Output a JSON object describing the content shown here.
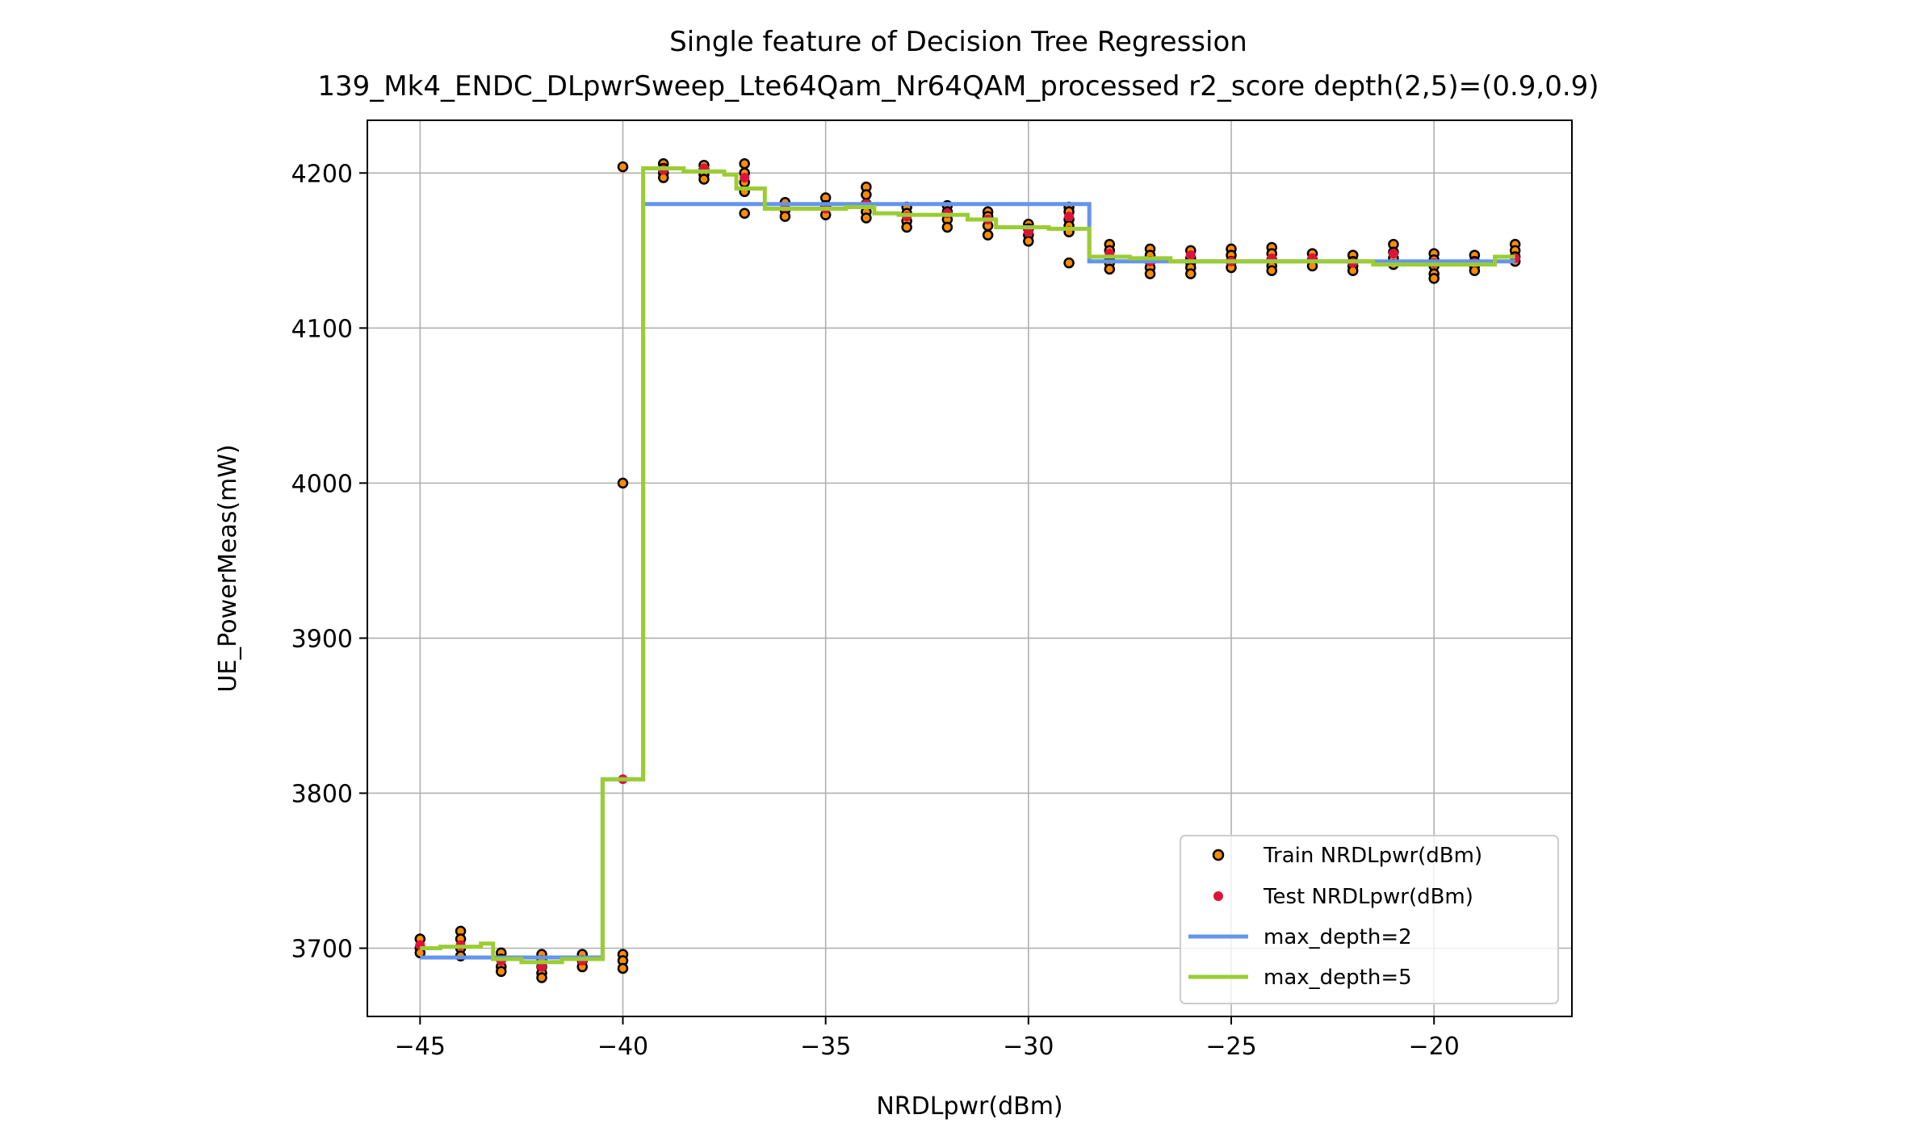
{
  "colors": {
    "train_fill": "#ff8c00",
    "train_edge": "#000000",
    "test_fill": "#dc143c",
    "depth2_line": "#6495ed",
    "depth5_line": "#9acd32",
    "grid": "#b0b0b0"
  },
  "chart_data": {
    "type": "scatter",
    "title": "Single feature of Decision Tree Regression",
    "subtitle": "139_Mk4_ENDC_DLpwrSweep_Lte64Qam_Nr64QAM_processed r2_score depth(2,5)=(0.9,0.9)",
    "xlabel": "NRDLpwr(dBm)",
    "ylabel": "UE_PowerMeas(mW)",
    "xlim": [
      -46.3,
      -16.6
    ],
    "ylim": [
      3656,
      4234
    ],
    "xticks": [
      -45,
      -40,
      -35,
      -30,
      -25,
      -20
    ],
    "xtick_labels": [
      "−45",
      "−40",
      "−35",
      "−30",
      "−25",
      "−20"
    ],
    "yticks": [
      3700,
      3800,
      3900,
      4000,
      4100,
      4200
    ],
    "ytick_labels": [
      "3700",
      "3800",
      "3900",
      "4000",
      "4100",
      "4200"
    ],
    "grid": true,
    "legend_position": "lower-right",
    "legend": [
      "Train NRDLpwr(dBm)",
      "Test NRDLpwr(dBm)",
      "max_depth=2",
      "max_depth=5"
    ],
    "series": [
      {
        "name": "Train NRDLpwr(dBm)",
        "kind": "scatter",
        "points": [
          [
            -45,
            3706
          ],
          [
            -45,
            3700
          ],
          [
            -45,
            3697
          ],
          [
            -44,
            3711
          ],
          [
            -44,
            3706
          ],
          [
            -44,
            3700
          ],
          [
            -44,
            3695
          ],
          [
            -43,
            3697
          ],
          [
            -43,
            3693
          ],
          [
            -43,
            3688
          ],
          [
            -43,
            3685
          ],
          [
            -42,
            3696
          ],
          [
            -42,
            3692
          ],
          [
            -42,
            3688
          ],
          [
            -42,
            3684
          ],
          [
            -42,
            3681
          ],
          [
            -41,
            3696
          ],
          [
            -41,
            3692
          ],
          [
            -41,
            3688
          ],
          [
            -40,
            4204
          ],
          [
            -40,
            4000
          ],
          [
            -40,
            3696
          ],
          [
            -40,
            3692
          ],
          [
            -40,
            3687
          ],
          [
            -39,
            4206
          ],
          [
            -39,
            4203
          ],
          [
            -39,
            4200
          ],
          [
            -39,
            4197
          ],
          [
            -38,
            4205
          ],
          [
            -38,
            4202
          ],
          [
            -38,
            4199
          ],
          [
            -38,
            4196
          ],
          [
            -37,
            4206
          ],
          [
            -37,
            4200
          ],
          [
            -37,
            4194
          ],
          [
            -37,
            4188
          ],
          [
            -37,
            4174
          ],
          [
            -36,
            4181
          ],
          [
            -36,
            4176
          ],
          [
            -36,
            4172
          ],
          [
            -35,
            4184
          ],
          [
            -35,
            4179
          ],
          [
            -35,
            4173
          ],
          [
            -34,
            4191
          ],
          [
            -34,
            4186
          ],
          [
            -34,
            4180
          ],
          [
            -34,
            4175
          ],
          [
            -34,
            4171
          ],
          [
            -33,
            4178
          ],
          [
            -33,
            4174
          ],
          [
            -33,
            4169
          ],
          [
            -33,
            4165
          ],
          [
            -32,
            4179
          ],
          [
            -32,
            4175
          ],
          [
            -32,
            4170
          ],
          [
            -32,
            4165
          ],
          [
            -31,
            4175
          ],
          [
            -31,
            4172
          ],
          [
            -31,
            4166
          ],
          [
            -31,
            4160
          ],
          [
            -30,
            4167
          ],
          [
            -30,
            4164
          ],
          [
            -30,
            4160
          ],
          [
            -30,
            4156
          ],
          [
            -29,
            4178
          ],
          [
            -29,
            4175
          ],
          [
            -29,
            4170
          ],
          [
            -29,
            4166
          ],
          [
            -29,
            4162
          ],
          [
            -29,
            4142
          ],
          [
            -28,
            4154
          ],
          [
            -28,
            4150
          ],
          [
            -28,
            4145
          ],
          [
            -28,
            4142
          ],
          [
            -28,
            4138
          ],
          [
            -27,
            4151
          ],
          [
            -27,
            4147
          ],
          [
            -27,
            4143
          ],
          [
            -27,
            4139
          ],
          [
            -27,
            4135
          ],
          [
            -26,
            4150
          ],
          [
            -26,
            4145
          ],
          [
            -26,
            4142
          ],
          [
            -26,
            4139
          ],
          [
            -26,
            4135
          ],
          [
            -25,
            4151
          ],
          [
            -25,
            4147
          ],
          [
            -25,
            4143
          ],
          [
            -25,
            4139
          ],
          [
            -24,
            4152
          ],
          [
            -24,
            4148
          ],
          [
            -24,
            4144
          ],
          [
            -24,
            4140
          ],
          [
            -24,
            4137
          ],
          [
            -23,
            4148
          ],
          [
            -23,
            4144
          ],
          [
            -23,
            4140
          ],
          [
            -22,
            4147
          ],
          [
            -22,
            4143
          ],
          [
            -22,
            4140
          ],
          [
            -22,
            4137
          ],
          [
            -21,
            4154
          ],
          [
            -21,
            4149
          ],
          [
            -21,
            4145
          ],
          [
            -21,
            4141
          ],
          [
            -20,
            4148
          ],
          [
            -20,
            4144
          ],
          [
            -20,
            4140
          ],
          [
            -20,
            4135
          ],
          [
            -20,
            4132
          ],
          [
            -19,
            4147
          ],
          [
            -19,
            4143
          ],
          [
            -19,
            4140
          ],
          [
            -19,
            4137
          ],
          [
            -18,
            4154
          ],
          [
            -18,
            4150
          ],
          [
            -18,
            4146
          ],
          [
            -18,
            4143
          ]
        ]
      },
      {
        "name": "Test NRDLpwr(dBm)",
        "kind": "scatter",
        "points": [
          [
            -45,
            3702
          ],
          [
            -44,
            3702
          ],
          [
            -43,
            3692
          ],
          [
            -42,
            3688
          ],
          [
            -41,
            3692
          ],
          [
            -40,
            3809
          ],
          [
            -39,
            4202
          ],
          [
            -38,
            4203
          ],
          [
            -37,
            4197
          ],
          [
            -36,
            4178
          ],
          [
            -35,
            4177
          ],
          [
            -34,
            4180
          ],
          [
            -33,
            4172
          ],
          [
            -32,
            4174
          ],
          [
            -31,
            4170
          ],
          [
            -30,
            4162
          ],
          [
            -29,
            4172
          ],
          [
            -28,
            4148
          ],
          [
            -27,
            4143
          ],
          [
            -26,
            4147
          ],
          [
            -25,
            4143
          ],
          [
            -24,
            4145
          ],
          [
            -23,
            4145
          ],
          [
            -22,
            4142
          ],
          [
            -21,
            4148
          ],
          [
            -20,
            4142
          ],
          [
            -19,
            4142
          ],
          [
            -18,
            4145
          ]
        ]
      },
      {
        "name": "max_depth=2",
        "kind": "line",
        "points": [
          [
            -45,
            3694
          ],
          [
            -40.5,
            3694
          ],
          [
            -40.5,
            3809
          ],
          [
            -39.5,
            3809
          ],
          [
            -39.5,
            4180
          ],
          [
            -28.5,
            4180
          ],
          [
            -28.5,
            4143
          ],
          [
            -18,
            4143
          ]
        ]
      },
      {
        "name": "max_depth=5",
        "kind": "line",
        "points": [
          [
            -45,
            3700
          ],
          [
            -44.5,
            3700
          ],
          [
            -44.5,
            3701
          ],
          [
            -43.5,
            3701
          ],
          [
            -43.5,
            3703
          ],
          [
            -43.2,
            3703
          ],
          [
            -43.2,
            3693
          ],
          [
            -42.5,
            3693
          ],
          [
            -42.5,
            3691
          ],
          [
            -41.5,
            3691
          ],
          [
            -41.5,
            3693
          ],
          [
            -40.5,
            3693
          ],
          [
            -40.5,
            3809
          ],
          [
            -39.5,
            3809
          ],
          [
            -39.5,
            4203
          ],
          [
            -38.5,
            4203
          ],
          [
            -38.5,
            4201
          ],
          [
            -37.5,
            4201
          ],
          [
            -37.5,
            4199
          ],
          [
            -37.2,
            4199
          ],
          [
            -37.2,
            4190
          ],
          [
            -36.5,
            4190
          ],
          [
            -36.5,
            4177
          ],
          [
            -34.5,
            4177
          ],
          [
            -34.5,
            4178
          ],
          [
            -33.8,
            4178
          ],
          [
            -33.8,
            4174
          ],
          [
            -33.2,
            4174
          ],
          [
            -33.2,
            4173
          ],
          [
            -31.5,
            4173
          ],
          [
            -31.5,
            4170
          ],
          [
            -30.8,
            4170
          ],
          [
            -30.8,
            4165
          ],
          [
            -29.5,
            4165
          ],
          [
            -29.5,
            4164
          ],
          [
            -28.5,
            4164
          ],
          [
            -28.5,
            4146
          ],
          [
            -27.5,
            4146
          ],
          [
            -27.5,
            4145
          ],
          [
            -26.5,
            4145
          ],
          [
            -26.5,
            4143
          ],
          [
            -21.5,
            4143
          ],
          [
            -21.5,
            4141
          ],
          [
            -18.5,
            4141
          ],
          [
            -18.5,
            4146
          ],
          [
            -18,
            4146
          ]
        ]
      }
    ]
  }
}
